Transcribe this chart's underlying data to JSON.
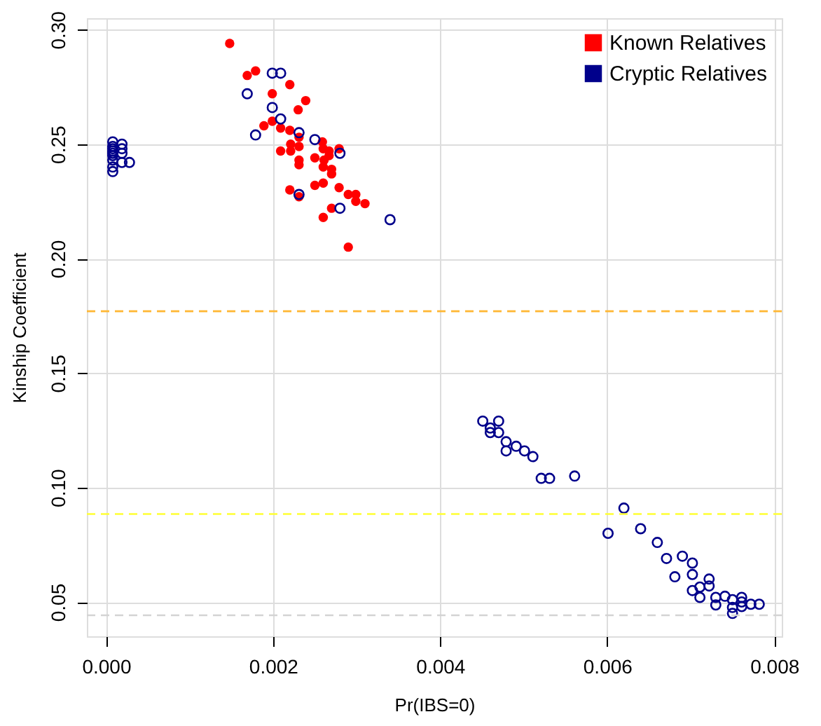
{
  "chart_data": {
    "type": "scatter",
    "xlabel": "Pr(IBS=0)",
    "ylabel": "Kinship Coefficient",
    "xlim": [
      -0.00023,
      0.00809
    ],
    "ylim": [
      0.035,
      0.305
    ],
    "xticks": [
      {
        "value": 0,
        "label": "0.000"
      },
      {
        "value": 0.002,
        "label": "0.002"
      },
      {
        "value": 0.004,
        "label": "0.004"
      },
      {
        "value": 0.006,
        "label": "0.006"
      },
      {
        "value": 0.008,
        "label": "0.008"
      }
    ],
    "yticks": [
      {
        "value": 0.05,
        "label": "0.05"
      },
      {
        "value": 0.1,
        "label": "0.10"
      },
      {
        "value": 0.15,
        "label": "0.15"
      },
      {
        "value": 0.2,
        "label": "0.20"
      },
      {
        "value": 0.25,
        "label": "0.25"
      },
      {
        "value": 0.3,
        "label": "0.30"
      }
    ],
    "grid": true,
    "legend": "top right",
    "marker": "circle",
    "ref_lines": [
      {
        "axis": "y",
        "value": 0.177,
        "color": "#ffb733",
        "line_style": "dashed"
      },
      {
        "axis": "y",
        "value": 0.0884,
        "color": "#ffff33",
        "line_style": "dashed"
      },
      {
        "axis": "y",
        "value": 0.0442,
        "color": "#d3d3d3",
        "line_style": "dashed"
      }
    ],
    "series": [
      {
        "name": "Known Relatives",
        "color": "#ff0000",
        "x": [
          0.00148,
          0.00169,
          0.00179,
          0.0022,
          0.00199,
          0.00239,
          0.0023,
          0.00189,
          0.00199,
          0.00209,
          0.0022,
          0.00231,
          0.00231,
          0.00221,
          0.00209,
          0.00221,
          0.00231,
          0.00231,
          0.0025,
          0.00259,
          0.0026,
          0.00267,
          0.00279,
          0.0026,
          0.0027,
          0.0027,
          0.0025,
          0.0026,
          0.0022,
          0.00231,
          0.00279,
          0.0029,
          0.00299,
          0.00299,
          0.0031,
          0.0027,
          0.0026,
          0.0029,
          0.00261,
          0.00267
        ],
        "values": [
          0.294,
          0.28,
          0.282,
          0.276,
          0.272,
          0.269,
          0.265,
          0.258,
          0.26,
          0.257,
          0.256,
          0.253,
          0.249,
          0.25,
          0.247,
          0.247,
          0.243,
          0.241,
          0.244,
          0.251,
          0.248,
          0.247,
          0.248,
          0.24,
          0.239,
          0.237,
          0.232,
          0.233,
          0.23,
          0.227,
          0.231,
          0.228,
          0.228,
          0.225,
          0.224,
          0.222,
          0.218,
          0.205,
          0.243,
          0.245
        ]
      },
      {
        "name": "Cryptic Relatives",
        "color": "#00008b",
        "x": [
          0.00199,
          0.00209,
          0.00169,
          0.00199,
          0.00209,
          0.00179,
          0.00231,
          0.0025,
          0.0028,
          0.00231,
          0.0028,
          0.0034,
          8e-05,
          8e-05,
          8e-05,
          8e-05,
          8e-05,
          8e-05,
          8e-05,
          8e-05,
          8e-05,
          0.00019,
          0.00019,
          0.00019,
          0.00019,
          0.00028,
          0.00451,
          0.0047,
          0.0046,
          0.0046,
          0.0047,
          0.00479,
          0.00479,
          0.00491,
          0.00501,
          0.00511,
          0.00521,
          0.00531,
          0.00561,
          0.00601,
          0.0062,
          0.0064,
          0.0066,
          0.00671,
          0.0069,
          0.00702,
          0.00681,
          0.00702,
          0.00702,
          0.00711,
          0.00711,
          0.00722,
          0.00722,
          0.0073,
          0.0073,
          0.00741,
          0.0075,
          0.0075,
          0.0075,
          0.00761,
          0.00761,
          0.00772,
          0.00782,
          0.00761
        ],
        "values": [
          0.281,
          0.281,
          0.272,
          0.266,
          0.261,
          0.254,
          0.255,
          0.252,
          0.246,
          0.228,
          0.222,
          0.217,
          0.251,
          0.249,
          0.248,
          0.247,
          0.246,
          0.245,
          0.243,
          0.24,
          0.238,
          0.25,
          0.248,
          0.246,
          0.242,
          0.242,
          0.129,
          0.129,
          0.126,
          0.124,
          0.124,
          0.12,
          0.116,
          0.118,
          0.116,
          0.1135,
          0.104,
          0.104,
          0.105,
          0.08,
          0.091,
          0.082,
          0.076,
          0.069,
          0.07,
          0.067,
          0.061,
          0.062,
          0.055,
          0.0565,
          0.052,
          0.06,
          0.057,
          0.052,
          0.0487,
          0.0525,
          0.051,
          0.0476,
          0.045,
          0.052,
          0.05,
          0.049,
          0.049,
          0.048
        ]
      }
    ]
  }
}
